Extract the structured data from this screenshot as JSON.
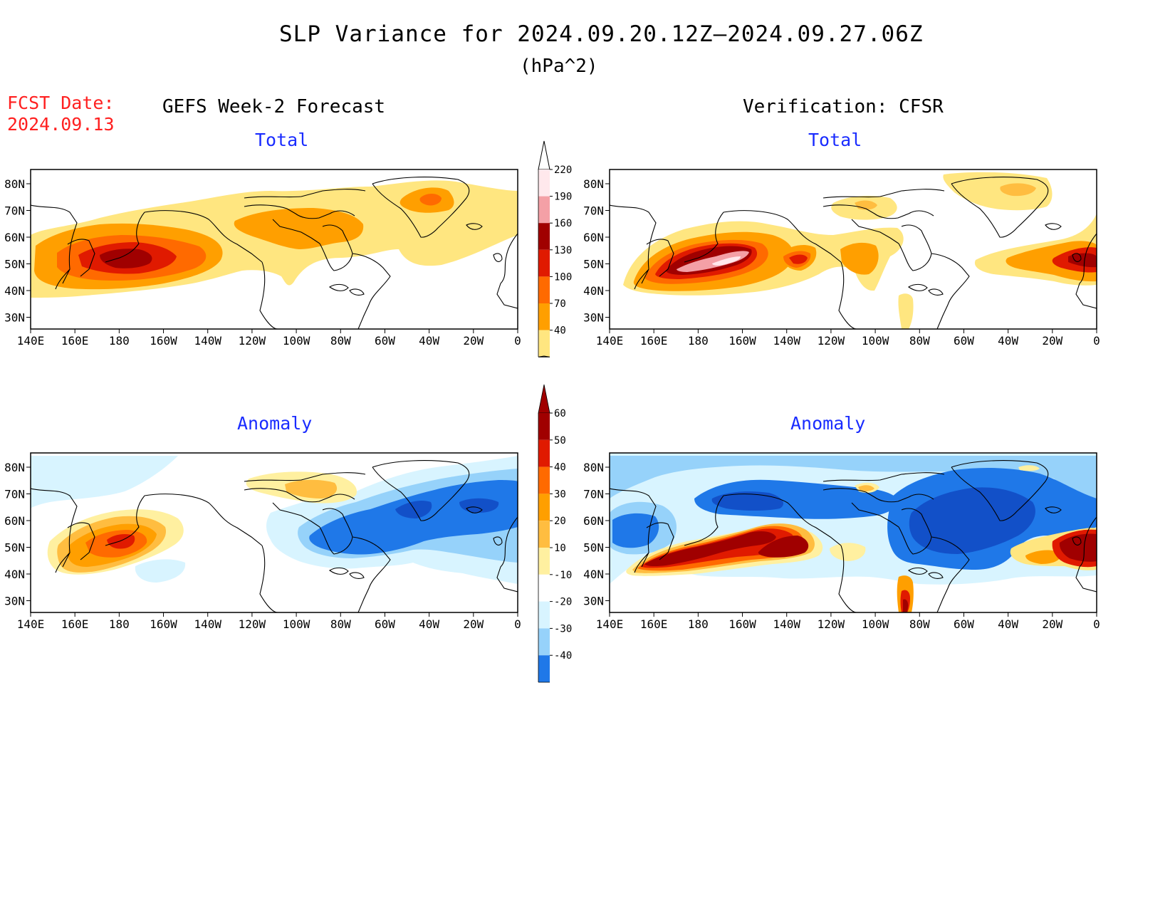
{
  "header": {
    "title": "SLP Variance for 2024.09.20.12Z–2024.09.27.06Z",
    "units": "(hPa^2)",
    "fcst_label": "FCST Date:",
    "fcst_date": "2024.09.13"
  },
  "columns": {
    "left": "GEFS Week-2 Forecast",
    "right": "Verification: CFSR"
  },
  "panels": [
    {
      "id": "fcst-total",
      "subtitle": "Total"
    },
    {
      "id": "verif-total",
      "subtitle": "Total"
    },
    {
      "id": "fcst-anomaly",
      "subtitle": "Anomaly"
    },
    {
      "id": "verif-anomaly",
      "subtitle": "Anomaly"
    }
  ],
  "axes": {
    "lat_labels": [
      "80N",
      "70N",
      "60N",
      "50N",
      "40N",
      "30N"
    ],
    "lon_labels": [
      "140E",
      "160E",
      "180",
      "160W",
      "140W",
      "120W",
      "100W",
      "80W",
      "60W",
      "40W",
      "20W",
      "0"
    ]
  },
  "colorbars": {
    "total": {
      "levels": [
        "220",
        "190",
        "160",
        "130",
        "100",
        "70",
        "40"
      ],
      "colors": [
        "#ffe8ec",
        "#f4a0a6",
        "#a00000",
        "#e01a00",
        "#ff6a00",
        "#ff9f00",
        "#ffe680"
      ]
    },
    "anomaly": {
      "levels": [
        "60",
        "50",
        "40",
        "30",
        "20",
        "10",
        "-10",
        "-20",
        "-30",
        "-40"
      ],
      "colors": [
        "#a00000",
        "#e01a00",
        "#ff6a00",
        "#ff9f00",
        "#ffbd40",
        "#fff0a0",
        "#ffffff",
        "#d8f4ff",
        "#96d2fa",
        "#1f78e8"
      ],
      "end_colors": {
        "top": "#a00000",
        "bottom": "#1250c8"
      }
    }
  }
}
